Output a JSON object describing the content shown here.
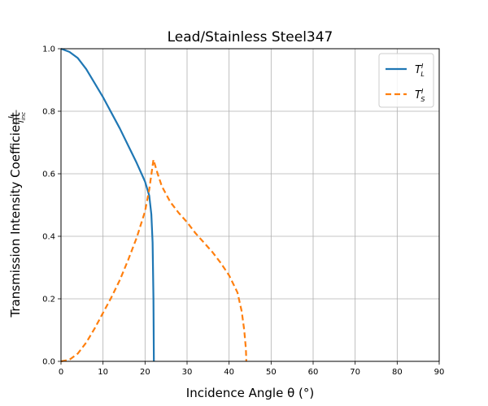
{
  "chart_data": {
    "type": "line",
    "title": "Lead/Stainless Steel347",
    "xlabel": "Incidence Angle θ (°)",
    "ylabel_main": "Transmission Intensity Coefficient",
    "ylabel_fraction": {
      "num": "I",
      "den": "I",
      "den_sub": "inc"
    },
    "xlim": [
      0,
      90
    ],
    "ylim": [
      0,
      1.0
    ],
    "xticks": [
      0,
      10,
      20,
      30,
      40,
      50,
      60,
      70,
      80,
      90
    ],
    "yticks": [
      0.0,
      0.2,
      0.4,
      0.6,
      0.8,
      1.0
    ],
    "ytick_labels": [
      "0.0",
      "0.2",
      "0.4",
      "0.6",
      "0.8",
      "1.0"
    ],
    "grid": true,
    "legend_position": "top-right",
    "series": [
      {
        "name": "T_L^I",
        "legend": {
          "base": "T",
          "sub": "L",
          "sup": "I"
        },
        "color": "#1f77b4",
        "style": "solid",
        "points": [
          [
            0,
            1.0
          ],
          [
            2,
            0.99
          ],
          [
            4,
            0.97
          ],
          [
            6,
            0.935
          ],
          [
            8,
            0.89
          ],
          [
            10,
            0.845
          ],
          [
            12,
            0.795
          ],
          [
            14,
            0.745
          ],
          [
            16,
            0.69
          ],
          [
            18,
            0.635
          ],
          [
            20,
            0.575
          ],
          [
            21,
            0.53
          ],
          [
            21.5,
            0.47
          ],
          [
            21.8,
            0.38
          ],
          [
            22.0,
            0.2
          ],
          [
            22.1,
            0.0
          ]
        ]
      },
      {
        "name": "T_S^I",
        "legend": {
          "base": "T",
          "sub": "S",
          "sup": "I"
        },
        "color": "#ff7f0e",
        "style": "dashed",
        "points": [
          [
            0,
            0.0
          ],
          [
            2,
            0.005
          ],
          [
            4,
            0.025
          ],
          [
            6,
            0.06
          ],
          [
            8,
            0.105
          ],
          [
            10,
            0.155
          ],
          [
            12,
            0.205
          ],
          [
            14,
            0.26
          ],
          [
            16,
            0.325
          ],
          [
            18,
            0.395
          ],
          [
            20,
            0.48
          ],
          [
            21,
            0.55
          ],
          [
            22.0,
            0.645
          ],
          [
            23,
            0.6
          ],
          [
            24,
            0.56
          ],
          [
            26,
            0.51
          ],
          [
            28,
            0.475
          ],
          [
            30,
            0.445
          ],
          [
            32,
            0.41
          ],
          [
            34,
            0.38
          ],
          [
            36,
            0.35
          ],
          [
            38,
            0.315
          ],
          [
            40,
            0.275
          ],
          [
            42,
            0.22
          ],
          [
            43,
            0.16
          ],
          [
            43.6,
            0.1
          ],
          [
            44.0,
            0.04
          ],
          [
            44.1,
            0.0
          ]
        ]
      }
    ]
  }
}
